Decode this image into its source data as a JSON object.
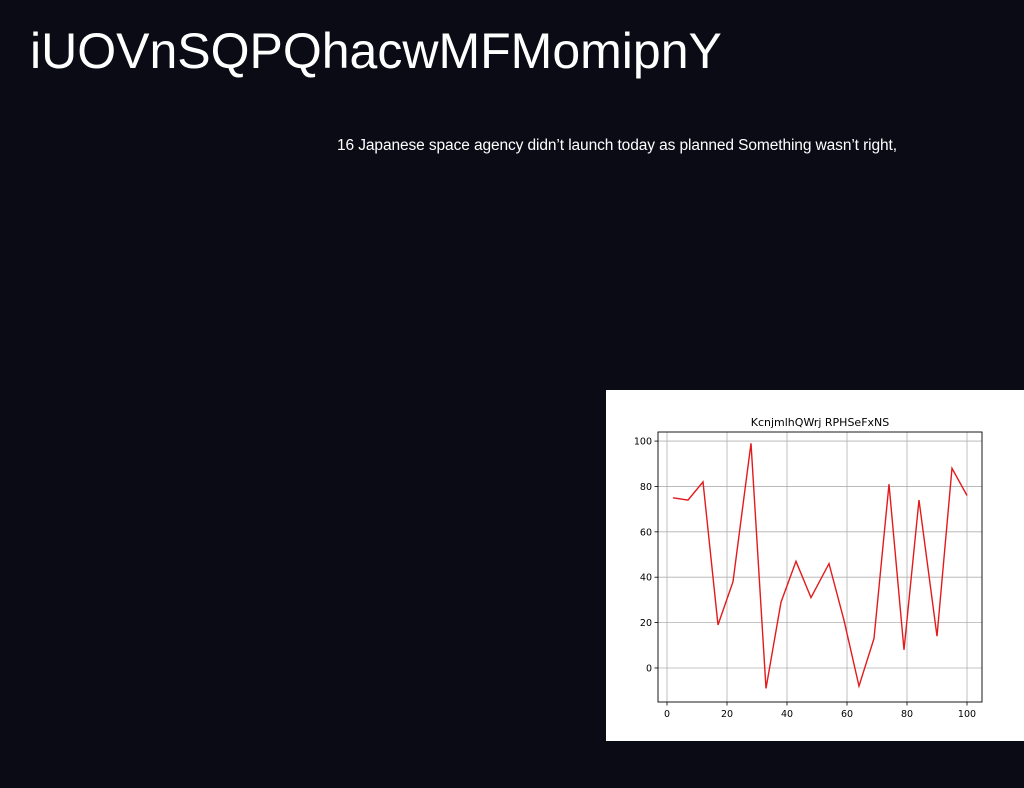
{
  "page": {
    "title": "iUOVnSQPQhacwMFMomipnY",
    "headline": "16 Japanese space agency didn’t launch today as planned Something wasn’t right,"
  },
  "colors": {
    "background": "#0b0b16",
    "text": "#ffffff",
    "line": "#e31a1c"
  },
  "chart_data": {
    "type": "line",
    "title": "KcnjmlhQWrj RPHSeFxNS",
    "xlabel": "",
    "ylabel": "",
    "xlim": [
      -3,
      105
    ],
    "ylim": [
      -15,
      104
    ],
    "xticks": [
      0,
      20,
      40,
      60,
      80,
      100
    ],
    "yticks": [
      0,
      20,
      40,
      60,
      80,
      100
    ],
    "grid": true,
    "legend": "none",
    "series": [
      {
        "x": [
          2,
          7,
          12,
          17,
          22,
          28,
          33,
          38,
          43,
          48,
          54,
          59,
          64,
          69,
          74,
          79,
          84,
          90,
          95,
          100
        ],
        "y": [
          75,
          74,
          82,
          19,
          38,
          99,
          -9,
          29,
          47,
          31,
          46,
          21,
          -8,
          13,
          81,
          8,
          74,
          14,
          88,
          76
        ]
      }
    ]
  }
}
